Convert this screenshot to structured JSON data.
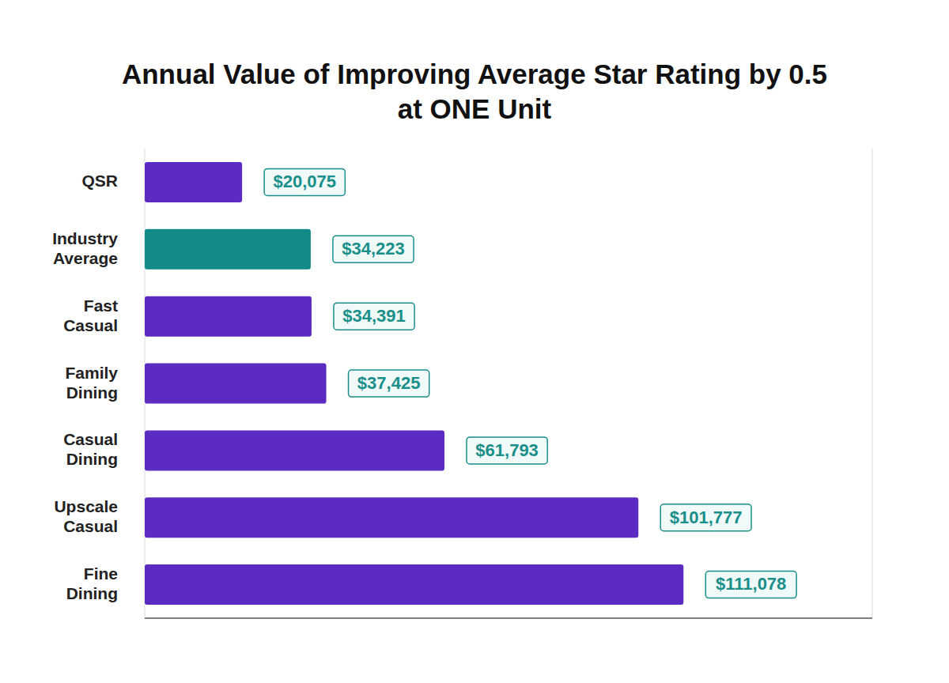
{
  "chart_data": {
    "type": "bar",
    "title": "Annual Value of Improving Average Star Rating by 0.5 at ONE Unit",
    "orientation": "horizontal",
    "categories": [
      "QSR",
      "Industry Average",
      "Fast Casual",
      "Family Dining",
      "Casual Dining",
      "Upscale Casual",
      "Fine Dining"
    ],
    "values": [
      20075,
      34223,
      34391,
      37425,
      61793,
      101777,
      111078
    ],
    "value_labels": [
      "$20,075",
      "$34,223",
      "$34,391",
      "$37,425",
      "$61,793",
      "$101,777",
      "$111,078"
    ],
    "colors": [
      "#5b2bc2",
      "#128a87",
      "#5b2bc2",
      "#5b2bc2",
      "#5b2bc2",
      "#5b2bc2",
      "#5b2bc2"
    ],
    "xlim": [
      0,
      150000
    ],
    "xticks": [
      0,
      30000,
      60000,
      90000,
      120000,
      150000
    ],
    "grid": true,
    "data_labels": true,
    "tick_labels": "y"
  }
}
